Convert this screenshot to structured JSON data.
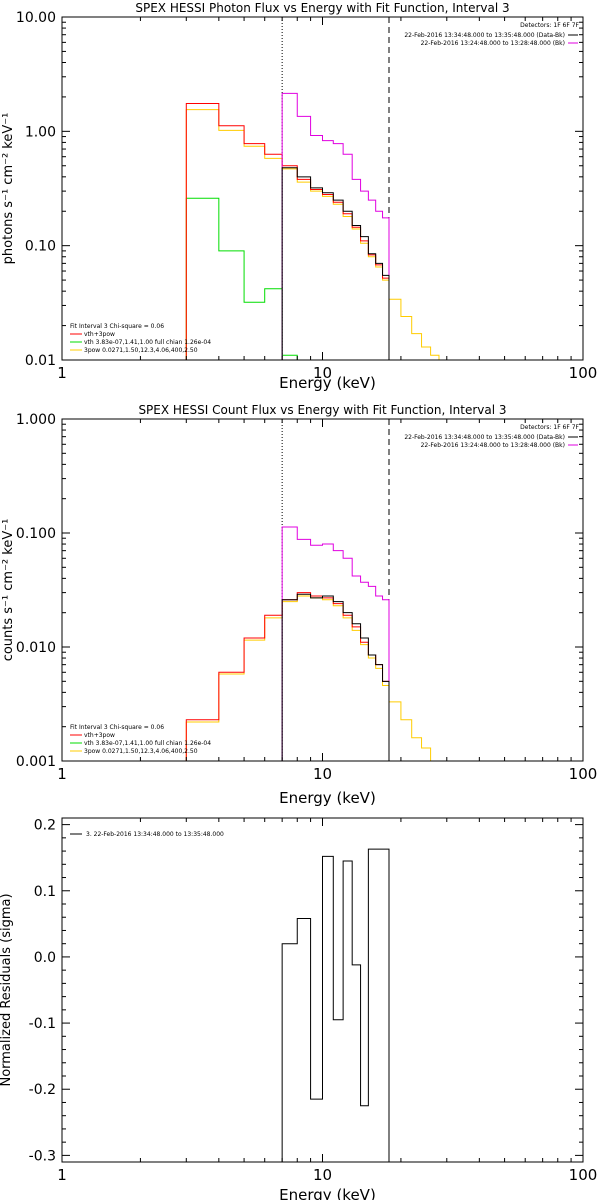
{
  "colors": {
    "data": "#000000",
    "total": "#ff0000",
    "thermal": "#00dd00",
    "power": "#ffcc00",
    "background": "#e000e0",
    "axis": "#000000"
  },
  "chart_data": [
    {
      "type": "line",
      "title": "SPEX HESSI Photon Flux vs Energy with Fit Function, Interval 3",
      "xlabel": "Energy (keV)",
      "ylabel": "photons s⁻¹ cm⁻² keV⁻¹",
      "xscale": "log",
      "yscale": "log",
      "xlim": [
        1,
        100
      ],
      "ylim": [
        0.01,
        10
      ],
      "xticks": [
        {
          "v": 1,
          "label": "1"
        },
        {
          "v": 10,
          "label": "10"
        },
        {
          "v": 100,
          "label": "100"
        }
      ],
      "yticks": [
        {
          "v": 0.01,
          "label": "0.01"
        },
        {
          "v": 0.1,
          "label": "0.10"
        },
        {
          "v": 1,
          "label": "1.00"
        },
        {
          "v": 10,
          "label": "10.00"
        }
      ],
      "vlines": [
        {
          "x": 7.0,
          "style": "dotted"
        },
        {
          "x": 18.0,
          "style": "dashed"
        }
      ],
      "edges": [
        3.0,
        4.0,
        5.0,
        6.0,
        7.0,
        8.0,
        9.0,
        10.0,
        11.0,
        12.0,
        13.0,
        14.0,
        15.0,
        16.0,
        17.0,
        18.0,
        20.0,
        22.0,
        24.0,
        26.0,
        28.0,
        30.0
      ],
      "series": [
        {
          "key": "data",
          "start": 4,
          "end": 15,
          "values": [
            0.48,
            0.4,
            0.32,
            0.29,
            0.25,
            0.2,
            0.15,
            0.12,
            0.085,
            0.07,
            0.055
          ]
        },
        {
          "key": "total",
          "start": 0,
          "end": 15,
          "values": [
            1.75,
            1.12,
            0.78,
            0.63,
            0.5,
            0.38,
            0.31,
            0.28,
            0.24,
            0.19,
            0.145,
            0.11,
            0.083,
            0.068,
            0.052
          ]
        },
        {
          "key": "thermal",
          "start": 0,
          "end": 5,
          "values": [
            0.26,
            0.09,
            0.032,
            0.042,
            0.011
          ]
        },
        {
          "key": "power",
          "start": 0,
          "end": 21,
          "values": [
            1.55,
            1.02,
            0.74,
            0.58,
            0.47,
            0.36,
            0.3,
            0.27,
            0.23,
            0.18,
            0.14,
            0.105,
            0.08,
            0.065,
            0.05,
            0.034,
            0.024,
            0.017,
            0.013,
            0.011,
            0.01
          ]
        },
        {
          "key": "background",
          "start": 4,
          "end": 15,
          "values": [
            2.15,
            1.35,
            0.92,
            0.83,
            0.78,
            0.63,
            0.38,
            0.3,
            0.25,
            0.2,
            0.175
          ]
        }
      ],
      "detectors": "Detectors: 1F 6F 7F",
      "legend_top": [
        {
          "text": "22-Feb-2016 13:34:48.000 to 13:35:48.000 (Data-Bk)",
          "key": "data"
        },
        {
          "text": "22-Feb-2016 13:24:48.000 to 13:28:48.000 (Bk)",
          "key": "background"
        }
      ],
      "legend_bottom": [
        {
          "text": "Fit Interval 3   Chi-square = 0.06",
          "key": null
        },
        {
          "text": "vth+3pow",
          "key": "total"
        },
        {
          "text": "vth 3.83e-07,1.41,1.00  full chian 1.26e-04",
          "key": "thermal"
        },
        {
          "text": "3pow 0.0271,1.50,12.3,4.06,400,2.50",
          "key": "power"
        }
      ]
    },
    {
      "type": "line",
      "title": "SPEX HESSI Count Flux vs Energy with Fit Function, Interval 3",
      "xlabel": "Energy (keV)",
      "ylabel": "counts s⁻¹ cm⁻² keV⁻¹",
      "xscale": "log",
      "yscale": "log",
      "xlim": [
        1,
        100
      ],
      "ylim": [
        0.001,
        1
      ],
      "xticks": [
        {
          "v": 1,
          "label": "1"
        },
        {
          "v": 10,
          "label": "10"
        },
        {
          "v": 100,
          "label": "100"
        }
      ],
      "yticks": [
        {
          "v": 0.001,
          "label": "0.001"
        },
        {
          "v": 0.01,
          "label": "0.010"
        },
        {
          "v": 0.1,
          "label": "0.100"
        },
        {
          "v": 1,
          "label": "1.000"
        }
      ],
      "vlines": [
        {
          "x": 7.0,
          "style": "dotted"
        },
        {
          "x": 18.0,
          "style": "dashed"
        }
      ],
      "edges": [
        3.0,
        4.0,
        5.0,
        6.0,
        7.0,
        8.0,
        9.0,
        10.0,
        11.0,
        12.0,
        13.0,
        14.0,
        15.0,
        16.0,
        17.0,
        18.0,
        20.0,
        22.0,
        24.0,
        26.0,
        28.0
      ],
      "series": [
        {
          "key": "data",
          "start": 4,
          "end": 15,
          "values": [
            0.026,
            0.029,
            0.027,
            0.028,
            0.025,
            0.02,
            0.016,
            0.012,
            0.0085,
            0.007,
            0.005
          ]
        },
        {
          "key": "total",
          "start": 0,
          "end": 15,
          "values": [
            0.0023,
            0.006,
            0.012,
            0.019,
            0.026,
            0.03,
            0.028,
            0.027,
            0.024,
            0.019,
            0.015,
            0.011,
            0.0085,
            0.007,
            0.005
          ]
        },
        {
          "key": "thermal",
          "start": 0,
          "end": 0,
          "values": []
        },
        {
          "key": "power",
          "start": 0,
          "end": 20,
          "values": [
            0.0022,
            0.0058,
            0.0115,
            0.018,
            0.025,
            0.028,
            0.027,
            0.026,
            0.023,
            0.018,
            0.014,
            0.0105,
            0.008,
            0.0065,
            0.0046,
            0.0033,
            0.0023,
            0.0016,
            0.0013,
            0.001
          ]
        },
        {
          "key": "background",
          "start": 4,
          "end": 15,
          "values": [
            0.113,
            0.088,
            0.078,
            0.08,
            0.07,
            0.06,
            0.042,
            0.037,
            0.034,
            0.028,
            0.026
          ]
        }
      ],
      "detectors": "Detectors: 1F 6F 7F",
      "legend_top": [
        {
          "text": "22-Feb-2016 13:34:48.000 to 13:35:48.000 (Data-Bk)",
          "key": "data"
        },
        {
          "text": "22-Feb-2016 13:24:48.000 to 13:28:48.000 (Bk)",
          "key": "background"
        }
      ],
      "legend_bottom": [
        {
          "text": "Fit Interval 3   Chi-square = 0.06",
          "key": null
        },
        {
          "text": "vth+3pow",
          "key": "total"
        },
        {
          "text": "vth 3.83e-07,1.41,1.00  full chian 1.26e-04",
          "key": "thermal"
        },
        {
          "text": "3pow 0.0271,1.50,12.3,4.06,400,2.50",
          "key": "power"
        }
      ]
    },
    {
      "type": "line",
      "title": "",
      "xlabel": "Energy (keV)",
      "ylabel": "Normalized Residuals (sigma)",
      "xscale": "log",
      "yscale": "linear",
      "xlim": [
        1,
        100
      ],
      "ylim": [
        -0.31,
        0.21
      ],
      "xticks": [
        {
          "v": 1,
          "label": "1"
        },
        {
          "v": 10,
          "label": "10"
        },
        {
          "v": 100,
          "label": "100"
        }
      ],
      "yticks": [
        {
          "v": -0.3,
          "label": "-0.3"
        },
        {
          "v": -0.2,
          "label": "-0.2"
        },
        {
          "v": -0.1,
          "label": "-0.1"
        },
        {
          "v": 0.0,
          "label": "0.0"
        },
        {
          "v": 0.1,
          "label": "0.1"
        },
        {
          "v": 0.2,
          "label": "0.2"
        }
      ],
      "vlines": [],
      "edges": [
        7.0,
        8.0,
        9.0,
        10.0,
        11.0,
        12.0,
        13.0,
        14.0,
        15.0,
        16.0,
        17.0,
        18.0
      ],
      "series": [
        {
          "key": "data",
          "start": 0,
          "end": 11,
          "values": [
            0.02,
            0.058,
            -0.215,
            0.152,
            -0.095,
            0.145,
            -0.012,
            -0.225,
            0.163,
            0.163,
            0.163
          ]
        }
      ],
      "detectors": "",
      "legend_top": [],
      "legend_bottom": [],
      "legend_residual": "3. 22-Feb-2016 13:34:48.000 to 13:35:48.000"
    }
  ]
}
